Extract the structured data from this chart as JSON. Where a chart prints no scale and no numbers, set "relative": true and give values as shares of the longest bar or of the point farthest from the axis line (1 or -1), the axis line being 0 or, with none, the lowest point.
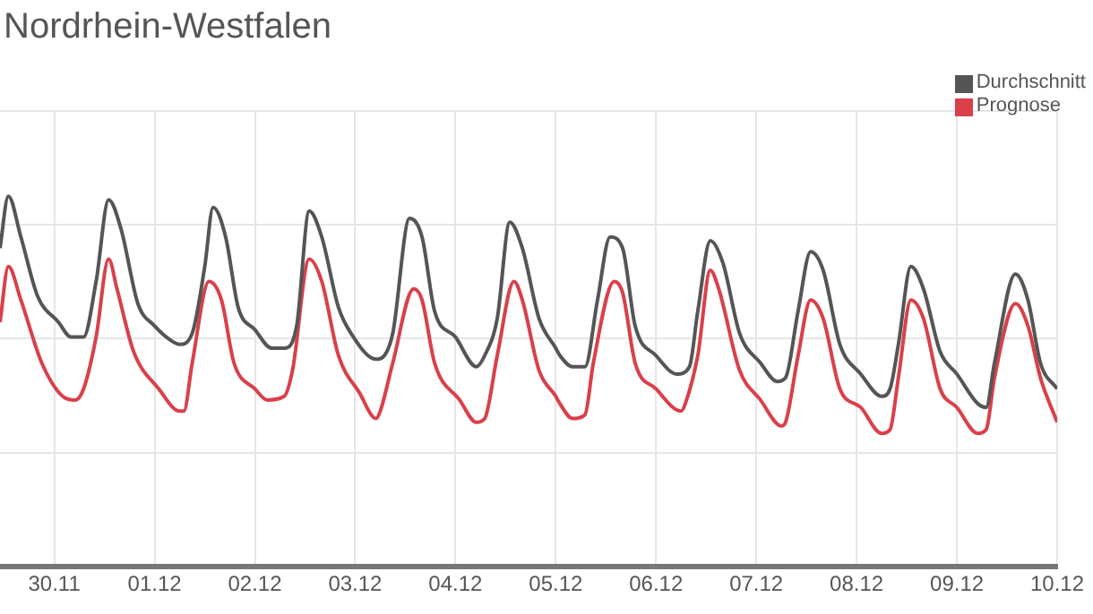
{
  "chart_data": {
    "type": "line",
    "title": "Nordrhein-Westfalen",
    "relative": true,
    "grid": true,
    "legend": "top right",
    "marker": "none",
    "xlim": [
      "--11-29T11:00",
      "--12-10T00:00"
    ],
    "xticks": [
      {
        "value": "--11-30",
        "label": "30.11"
      },
      {
        "value": "--12-01",
        "label": "01.12"
      },
      {
        "value": "--12-02",
        "label": "02.12"
      },
      {
        "value": "--12-03",
        "label": "03.12"
      },
      {
        "value": "--12-04",
        "label": "04.12"
      },
      {
        "value": "--12-05",
        "label": "05.12"
      },
      {
        "value": "--12-06",
        "label": "06.12"
      },
      {
        "value": "--12-07",
        "label": "07.12"
      },
      {
        "value": "--12-08",
        "label": "08.12"
      },
      {
        "value": "--12-09",
        "label": "09.12"
      },
      {
        "value": "--12-10",
        "label": "10.12"
      }
    ],
    "series": [
      {
        "name": "Durchschnitt",
        "color": "#555555",
        "x": [
          "--11-29T11:00",
          "--11-29T13:00",
          "--11-29T16:00",
          "--11-29T20:00",
          "--11-30T01:00",
          "--11-30T04:00",
          "--11-30T07:00",
          "--11-30T10:00",
          "--11-30T13:00",
          "--11-30T16:00",
          "--11-30T20:00",
          "--12-01T00:00",
          "--12-01T04:00",
          "--12-01T06:00",
          "--12-01T09:00",
          "--12-01T12:00",
          "--12-01T14:00",
          "--12-01T17:00",
          "--12-01T20:00",
          "--12-02T00:00",
          "--12-02T04:00",
          "--12-02T07:00",
          "--12-02T10:00",
          "--12-02T13:00",
          "--12-02T16:00",
          "--12-02T20:00",
          "--12-02T23:00",
          "--12-03T05:00",
          "--12-03T07:00",
          "--12-03T09:00",
          "--12-03T13:00",
          "--12-03T16:00",
          "--12-03T19:00",
          "--12-04T00:00",
          "--12-04T05:00",
          "--12-04T07:00",
          "--12-04T10:00",
          "--12-04T13:00",
          "--12-04T16:00",
          "--12-04T20:00",
          "--12-05T00:00",
          "--12-05T01:00",
          "--12-05T04:00",
          "--12-05T07:00",
          "--12-05T10:00",
          "--12-05T13:00",
          "--12-05T16:00",
          "--12-05T19:00",
          "--12-06T00:00",
          "--12-06T05:00",
          "--12-06T08:00",
          "--12-06T10:00",
          "--12-06T13:00",
          "--12-06T16:00",
          "--12-06T20:00",
          "--12-07T01:00",
          "--12-07T05:00",
          "--12-07T07:00",
          "--12-07T10:00",
          "--12-07T13:00",
          "--12-07T16:00",
          "--12-07T20:00",
          "--12-08T01:00",
          "--12-08T06:00",
          "--12-08T08:00",
          "--12-08T10:00",
          "--12-08T13:00",
          "--12-08T16:00",
          "--12-08T20:00",
          "--12-09T00:00",
          "--12-09T05:00",
          "--12-09T07:00",
          "--12-09T09:00",
          "--12-09T14:00",
          "--12-09T17:00",
          "--12-09T20:00",
          "--12-10T00:00"
        ],
        "values": [
          0.86,
          1.0,
          0.89,
          0.73,
          0.66,
          0.62,
          0.62,
          0.77,
          0.99,
          0.91,
          0.71,
          0.65,
          0.61,
          0.6,
          0.63,
          0.81,
          0.97,
          0.89,
          0.7,
          0.64,
          0.59,
          0.59,
          0.65,
          0.96,
          0.89,
          0.7,
          0.63,
          0.56,
          0.57,
          0.63,
          0.94,
          0.89,
          0.69,
          0.62,
          0.54,
          0.57,
          0.67,
          0.93,
          0.86,
          0.67,
          0.59,
          0.57,
          0.54,
          0.54,
          0.72,
          0.89,
          0.86,
          0.65,
          0.57,
          0.52,
          0.54,
          0.69,
          0.88,
          0.82,
          0.63,
          0.55,
          0.5,
          0.51,
          0.69,
          0.85,
          0.8,
          0.6,
          0.52,
          0.46,
          0.48,
          0.6,
          0.81,
          0.75,
          0.58,
          0.52,
          0.44,
          0.43,
          0.55,
          0.79,
          0.72,
          0.55,
          0.48
        ]
      },
      {
        "name": "Prognose",
        "color": "#d9404a",
        "x": [
          "--11-29T11:00",
          "--11-29T13:00",
          "--11-29T16:00",
          "--11-29T21:00",
          "--11-30T02:00",
          "--11-30T05:00",
          "--11-30T07:00",
          "--11-30T10:00",
          "--11-30T13:00",
          "--11-30T15:00",
          "--11-30T19:00",
          "--12-01T01:00",
          "--12-01T06:00",
          "--12-01T07:00",
          "--12-01T09:00",
          "--12-01T13:00",
          "--12-01T16:00",
          "--12-01T19:00",
          "--12-02T00:00",
          "--12-02T03:00",
          "--12-02T07:00",
          "--12-02T09:00",
          "--12-02T13:00",
          "--12-02T16:00",
          "--12-02T20:00",
          "--12-03T01:00",
          "--12-03T05:00",
          "--12-03T06:00",
          "--12-03T09:00",
          "--12-03T14:00",
          "--12-03T16:00",
          "--12-03T19:00",
          "--12-04T01:00",
          "--12-04T05:00",
          "--12-04T07:00",
          "--12-04T10:00",
          "--12-04T14:00",
          "--12-04T16:00",
          "--12-04T20:00",
          "--12-05T00:00",
          "--12-05T01:00",
          "--12-05T04:00",
          "--12-05T07:00",
          "--12-05T09:00",
          "--12-05T14:00",
          "--12-05T16:00",
          "--12-05T19:00",
          "--12-06T00:00",
          "--12-06T06:00",
          "--12-06T07:00",
          "--12-06T10:00",
          "--12-06T13:00",
          "--12-06T15:00",
          "--12-06T20:00",
          "--12-07T01:00",
          "--12-07T06:00",
          "--12-07T07:00",
          "--12-07T10:00",
          "--12-07T13:00",
          "--12-07T16:00",
          "--12-07T20:00",
          "--12-08T01:00",
          "--12-08T06:00",
          "--12-08T08:00",
          "--12-08T10:00",
          "--12-08T13:00",
          "--12-08T16:00",
          "--12-08T20:00",
          "--12-09T00:00",
          "--12-09T05:00",
          "--12-09T07:00",
          "--12-09T09:00",
          "--12-09T14:00",
          "--12-09T17:00",
          "--12-09T20:00",
          "--12-10T00:00"
        ],
        "values": [
          0.66,
          0.81,
          0.72,
          0.55,
          0.46,
          0.45,
          0.48,
          0.62,
          0.83,
          0.75,
          0.58,
          0.48,
          0.42,
          0.42,
          0.55,
          0.77,
          0.72,
          0.55,
          0.48,
          0.45,
          0.46,
          0.53,
          0.83,
          0.77,
          0.57,
          0.47,
          0.4,
          0.42,
          0.55,
          0.75,
          0.72,
          0.55,
          0.45,
          0.39,
          0.4,
          0.57,
          0.77,
          0.72,
          0.53,
          0.46,
          0.44,
          0.4,
          0.41,
          0.55,
          0.77,
          0.74,
          0.55,
          0.48,
          0.42,
          0.44,
          0.57,
          0.8,
          0.75,
          0.53,
          0.45,
          0.38,
          0.39,
          0.57,
          0.72,
          0.67,
          0.48,
          0.43,
          0.36,
          0.37,
          0.51,
          0.72,
          0.67,
          0.48,
          0.43,
          0.36,
          0.37,
          0.51,
          0.71,
          0.65,
          0.51,
          0.39
        ]
      }
    ]
  }
}
